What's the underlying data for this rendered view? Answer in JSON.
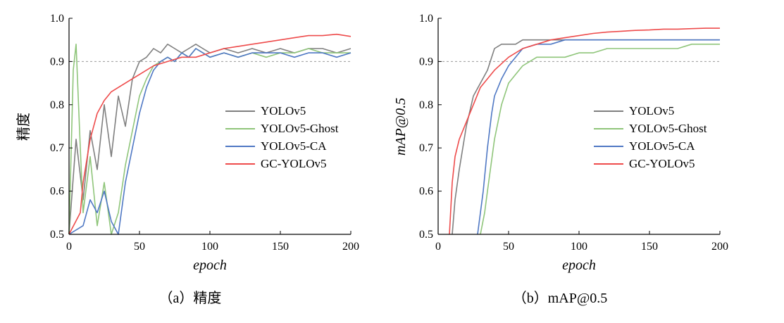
{
  "colors": {
    "YOLOv5": "#7f7f7f",
    "YOLOv5-Ghost": "#8fc57a",
    "YOLOv5-CA": "#4f78c4",
    "GC-YOLOv5": "#ee4b4b",
    "reference": "#999999"
  },
  "chart_data": [
    {
      "type": "line",
      "caption": "（a）精度",
      "xlabel": "epoch",
      "ylabel": "精度",
      "xlim": [
        0,
        200
      ],
      "ylim": [
        0.5,
        1.0
      ],
      "xticks": [
        "0",
        "50",
        "100",
        "150",
        "200"
      ],
      "yticks": [
        "0.5",
        "0.6",
        "0.7",
        "0.8",
        "0.9",
        "1.0"
      ],
      "reference_line": 0.9,
      "legend_position": "center-right",
      "series": [
        {
          "name": "YOLOv5",
          "x": [
            0,
            5,
            10,
            15,
            20,
            25,
            30,
            35,
            40,
            45,
            50,
            55,
            60,
            65,
            70,
            75,
            80,
            85,
            90,
            95,
            100,
            110,
            120,
            130,
            140,
            150,
            160,
            170,
            180,
            190,
            200
          ],
          "y": [
            0.5,
            0.72,
            0.58,
            0.74,
            0.65,
            0.8,
            0.68,
            0.82,
            0.75,
            0.86,
            0.9,
            0.91,
            0.93,
            0.92,
            0.94,
            0.93,
            0.92,
            0.93,
            0.94,
            0.93,
            0.92,
            0.93,
            0.92,
            0.93,
            0.92,
            0.93,
            0.92,
            0.93,
            0.93,
            0.92,
            0.93
          ]
        },
        {
          "name": "YOLOv5-Ghost",
          "x": [
            0,
            3,
            5,
            8,
            10,
            15,
            20,
            25,
            30,
            35,
            40,
            45,
            50,
            55,
            60,
            65,
            70,
            75,
            80,
            85,
            90,
            95,
            100,
            110,
            120,
            130,
            140,
            150,
            160,
            170,
            180,
            190,
            200
          ],
          "y": [
            0.5,
            0.88,
            0.94,
            0.7,
            0.55,
            0.68,
            0.52,
            0.62,
            0.5,
            0.55,
            0.66,
            0.74,
            0.82,
            0.86,
            0.89,
            0.9,
            0.91,
            0.9,
            0.92,
            0.91,
            0.93,
            0.92,
            0.91,
            0.92,
            0.91,
            0.92,
            0.91,
            0.92,
            0.92,
            0.93,
            0.92,
            0.92,
            0.92
          ]
        },
        {
          "name": "YOLOv5-CA",
          "x": [
            0,
            10,
            15,
            20,
            25,
            30,
            35,
            40,
            45,
            50,
            55,
            60,
            65,
            70,
            75,
            80,
            85,
            90,
            95,
            100,
            110,
            120,
            130,
            140,
            150,
            160,
            170,
            180,
            190,
            200
          ],
          "y": [
            0.5,
            0.52,
            0.58,
            0.55,
            0.6,
            0.53,
            0.5,
            0.62,
            0.7,
            0.78,
            0.84,
            0.88,
            0.9,
            0.91,
            0.9,
            0.92,
            0.91,
            0.93,
            0.92,
            0.91,
            0.92,
            0.91,
            0.92,
            0.92,
            0.92,
            0.91,
            0.92,
            0.92,
            0.91,
            0.92
          ]
        },
        {
          "name": "GC-YOLOv5",
          "x": [
            0,
            8,
            10,
            15,
            20,
            25,
            30,
            40,
            50,
            60,
            70,
            80,
            90,
            100,
            110,
            120,
            130,
            140,
            150,
            160,
            170,
            180,
            190,
            200
          ],
          "y": [
            0.5,
            0.55,
            0.62,
            0.72,
            0.78,
            0.81,
            0.83,
            0.85,
            0.87,
            0.89,
            0.9,
            0.91,
            0.91,
            0.92,
            0.93,
            0.935,
            0.94,
            0.945,
            0.95,
            0.955,
            0.96,
            0.96,
            0.963,
            0.958
          ]
        }
      ]
    },
    {
      "type": "line",
      "caption": "（b）mAP@0.5",
      "xlabel": "epoch",
      "ylabel": "mAP@0.5",
      "xlim": [
        0,
        200
      ],
      "ylim": [
        0.5,
        1.0
      ],
      "xticks": [
        "0",
        "50",
        "100",
        "150",
        "200"
      ],
      "yticks": [
        "0.5",
        "0.6",
        "0.7",
        "0.8",
        "0.9",
        "1.0"
      ],
      "reference_line": 0.9,
      "legend_position": "center-right",
      "series": [
        {
          "name": "YOLOv5",
          "x": [
            10,
            12,
            15,
            20,
            25,
            30,
            35,
            40,
            45,
            50,
            55,
            60,
            70,
            80,
            90,
            100,
            110,
            120,
            130,
            140,
            150,
            160,
            170,
            180,
            190,
            200
          ],
          "y": [
            0.5,
            0.58,
            0.65,
            0.75,
            0.82,
            0.85,
            0.88,
            0.93,
            0.94,
            0.94,
            0.94,
            0.95,
            0.95,
            0.95,
            0.95,
            0.95,
            0.95,
            0.95,
            0.95,
            0.95,
            0.95,
            0.95,
            0.95,
            0.95,
            0.95,
            0.95
          ]
        },
        {
          "name": "YOLOv5-Ghost",
          "x": [
            30,
            33,
            35,
            40,
            45,
            50,
            55,
            60,
            65,
            70,
            80,
            90,
            100,
            110,
            120,
            130,
            140,
            150,
            160,
            170,
            180,
            190,
            200
          ],
          "y": [
            0.5,
            0.55,
            0.6,
            0.72,
            0.8,
            0.85,
            0.87,
            0.89,
            0.9,
            0.91,
            0.91,
            0.91,
            0.92,
            0.92,
            0.93,
            0.93,
            0.93,
            0.93,
            0.93,
            0.93,
            0.94,
            0.94,
            0.94
          ]
        },
        {
          "name": "YOLOv5-CA",
          "x": [
            28,
            30,
            32,
            35,
            38,
            40,
            45,
            50,
            55,
            60,
            70,
            80,
            90,
            100,
            110,
            120,
            130,
            140,
            150,
            160,
            170,
            180,
            190,
            200
          ],
          "y": [
            0.5,
            0.55,
            0.6,
            0.7,
            0.78,
            0.82,
            0.86,
            0.89,
            0.91,
            0.93,
            0.94,
            0.94,
            0.95,
            0.95,
            0.95,
            0.95,
            0.95,
            0.95,
            0.95,
            0.95,
            0.95,
            0.95,
            0.95,
            0.95
          ]
        },
        {
          "name": "GC-YOLOv5",
          "x": [
            8,
            10,
            12,
            15,
            20,
            25,
            30,
            35,
            40,
            50,
            60,
            70,
            80,
            90,
            100,
            110,
            120,
            130,
            140,
            150,
            160,
            170,
            180,
            190,
            200
          ],
          "y": [
            0.5,
            0.62,
            0.68,
            0.72,
            0.76,
            0.8,
            0.84,
            0.86,
            0.88,
            0.91,
            0.93,
            0.94,
            0.95,
            0.955,
            0.96,
            0.965,
            0.968,
            0.97,
            0.972,
            0.973,
            0.975,
            0.975,
            0.976,
            0.977,
            0.977
          ]
        }
      ]
    }
  ]
}
